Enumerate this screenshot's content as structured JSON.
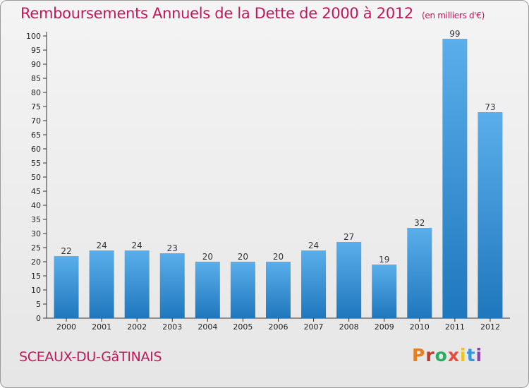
{
  "header": {
    "title": "Remboursements Annuels de la Dette de 2000 à 2012",
    "unit": "(en milliers d'€)"
  },
  "footer": {
    "city": "SCEAUX-DU-GâTINAIS",
    "logo": "Proxiti"
  },
  "colors": {
    "title": "#c2185b",
    "bar_light": "#5aaeea",
    "bar_dark": "#1f77bd",
    "logo_letters": [
      "#e67e22",
      "#c0392b",
      "#27ae60",
      "#e74c3c",
      "#f1c40f",
      "#3498db",
      "#8e44ad"
    ]
  },
  "chart_data": {
    "type": "bar",
    "categories": [
      "2000",
      "2001",
      "2002",
      "2003",
      "2004",
      "2005",
      "2006",
      "2007",
      "2008",
      "2009",
      "2010",
      "2011",
      "2012"
    ],
    "values": [
      22,
      24,
      24,
      23,
      20,
      20,
      20,
      24,
      27,
      19,
      32,
      99,
      73
    ],
    "ylim": [
      0,
      100
    ],
    "ytick_step": 5,
    "grid": false,
    "data_labels": true
  }
}
